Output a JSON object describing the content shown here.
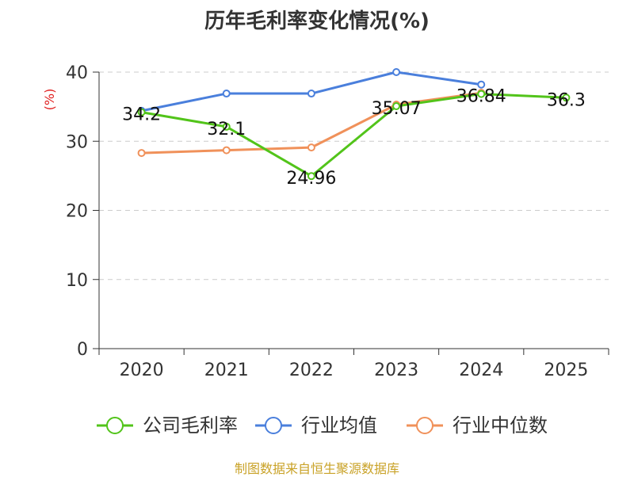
{
  "title": "历年毛利率变化情况(%)",
  "source": "制图数据来自恒生聚源数据库",
  "chart_data": {
    "type": "line",
    "title": "历年毛利率变化情况(%)",
    "ylabel": "(%)",
    "xlabel": "",
    "categories": [
      "2020",
      "2021",
      "2022",
      "2023",
      "2024",
      "2025"
    ],
    "ylim": [
      0,
      40
    ],
    "yticks": [
      0,
      10,
      20,
      30,
      40
    ],
    "grid": true,
    "legend_position": "bottom",
    "series": [
      {
        "name": "公司毛利率",
        "color": "#52c41a",
        "values": [
          34.2,
          32.1,
          24.96,
          35.07,
          36.84,
          36.3
        ],
        "labels": [
          "34.2",
          "32.1",
          "24.96",
          "35.07",
          "36.84",
          "36.3"
        ]
      },
      {
        "name": "行业均值",
        "color": "#4a7fdc",
        "values": [
          34.4,
          36.9,
          36.9,
          40.0,
          38.2,
          null
        ]
      },
      {
        "name": "行业中位数",
        "color": "#f0915a",
        "values": [
          28.3,
          28.7,
          29.1,
          35.3,
          37.0,
          null
        ]
      }
    ]
  }
}
